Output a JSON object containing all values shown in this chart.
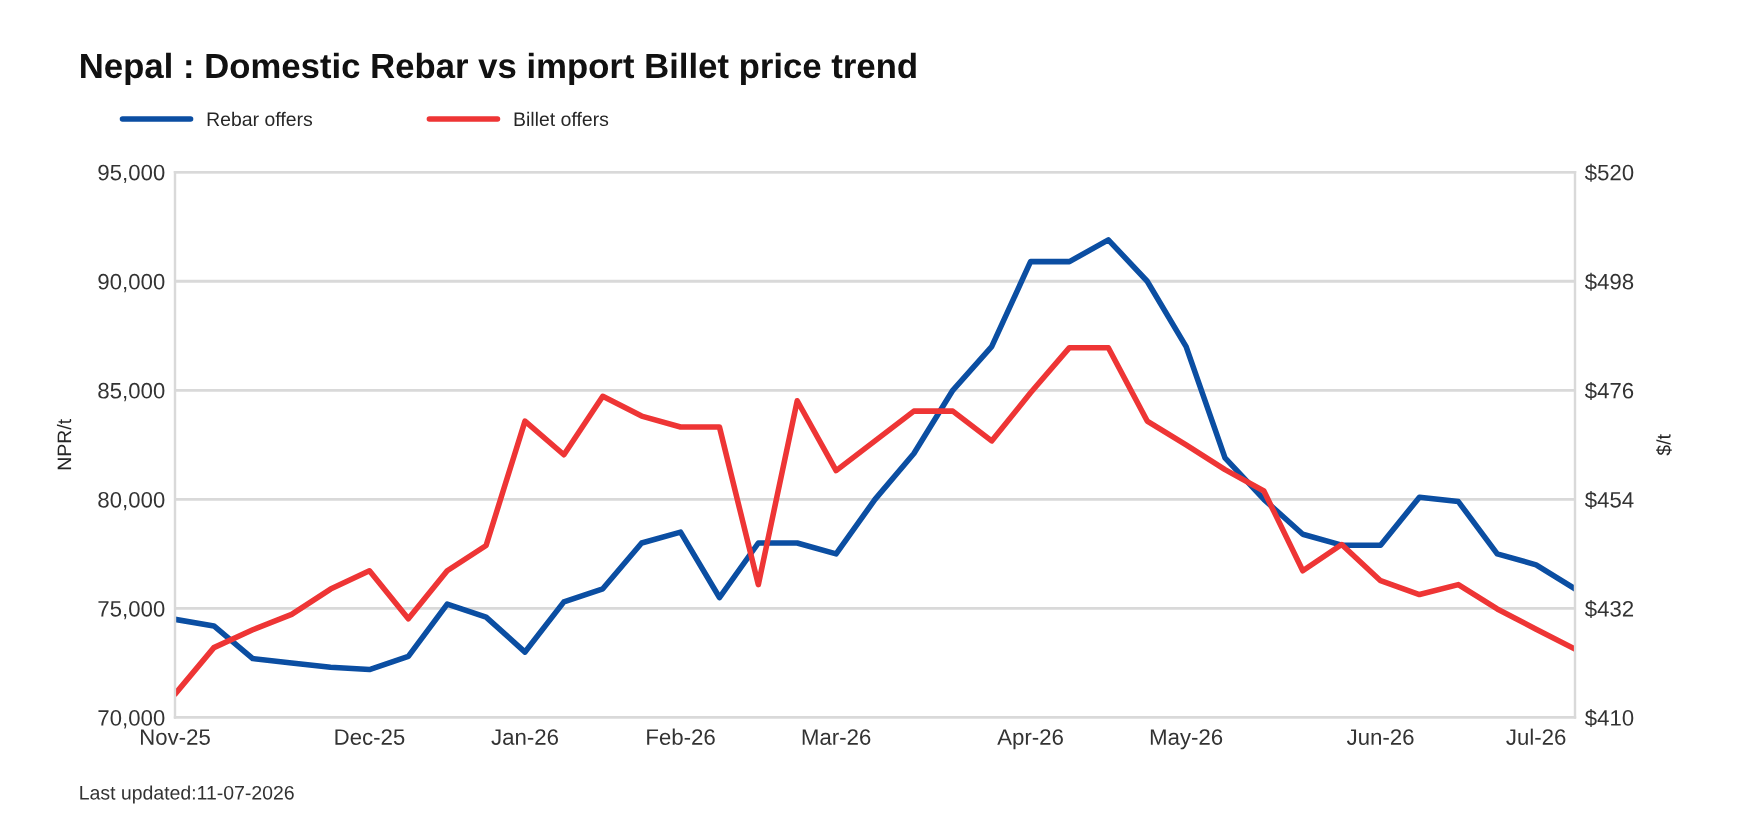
{
  "chart_data": {
    "type": "line",
    "title": "Nepal : Domestic Rebar vs import Billet price trend",
    "categories": [
      "Nov-25",
      null,
      null,
      null,
      null,
      "Dec-25",
      null,
      null,
      null,
      "Jan-26",
      null,
      null,
      null,
      "Feb-26",
      null,
      null,
      null,
      "Mar-26",
      null,
      null,
      null,
      null,
      "Apr-26",
      null,
      null,
      null,
      "May-26",
      null,
      null,
      null,
      null,
      "Jun-26",
      null,
      null,
      null,
      "Jul-26",
      null
    ],
    "series": [
      {
        "name": "Rebar offers",
        "color": "#0b4ea2",
        "values": [
          74500,
          74200,
          72700,
          72500,
          72300,
          72200,
          72800,
          75200,
          74600,
          73000,
          75300,
          75900,
          78000,
          78500,
          75500,
          78000,
          78000,
          77500,
          80000,
          82100,
          85000,
          87000,
          90900,
          90900,
          91900,
          90000,
          87000,
          81900,
          80000,
          78400,
          77900,
          77900,
          80100,
          79900,
          77500,
          77000,
          75900
        ]
      },
      {
        "name": "Billet offers",
        "color": "#ee3535",
        "axis": "y2",
        "values": [
          414.7,
          424.1,
          427.7,
          430.8,
          435.9,
          439.6,
          429.9,
          439.6,
          444.7,
          469.8,
          463.0,
          474.8,
          470.8,
          468.6,
          468.6,
          436.8,
          473.9,
          459.8,
          465.8,
          471.8,
          471.8,
          465.8,
          475.5,
          484.6,
          484.6,
          469.8,
          465.0,
          460.0,
          455.7,
          439.6,
          444.9,
          437.6,
          434.8,
          436.8,
          431.9,
          427.8,
          423.8
        ]
      }
    ],
    "ylabel": "NPR/t",
    "y2label": "$/t",
    "ylim": [
      70000,
      95000
    ],
    "yticks": [
      {
        "value": 70000,
        "label": "70,000"
      },
      {
        "value": 75000,
        "label": "75,000"
      },
      {
        "value": 80000,
        "label": "80,000"
      },
      {
        "value": 85000,
        "label": "85,000"
      },
      {
        "value": 90000,
        "label": "90,000"
      },
      {
        "value": 95000,
        "label": "95,000"
      }
    ],
    "y2lim": [
      410,
      520
    ],
    "y2ticks": [
      {
        "value": 410,
        "label": "$410"
      },
      {
        "value": 432,
        "label": "$432"
      },
      {
        "value": 454,
        "label": "$454"
      },
      {
        "value": 476,
        "label": "$476"
      },
      {
        "value": 498,
        "label": "$498"
      },
      {
        "value": 520,
        "label": "$520"
      }
    ],
    "grid": "y",
    "legend": "top left",
    "marker": "none",
    "line_style": "solid",
    "annotations": [
      "Last updated:11-07-2026"
    ]
  }
}
